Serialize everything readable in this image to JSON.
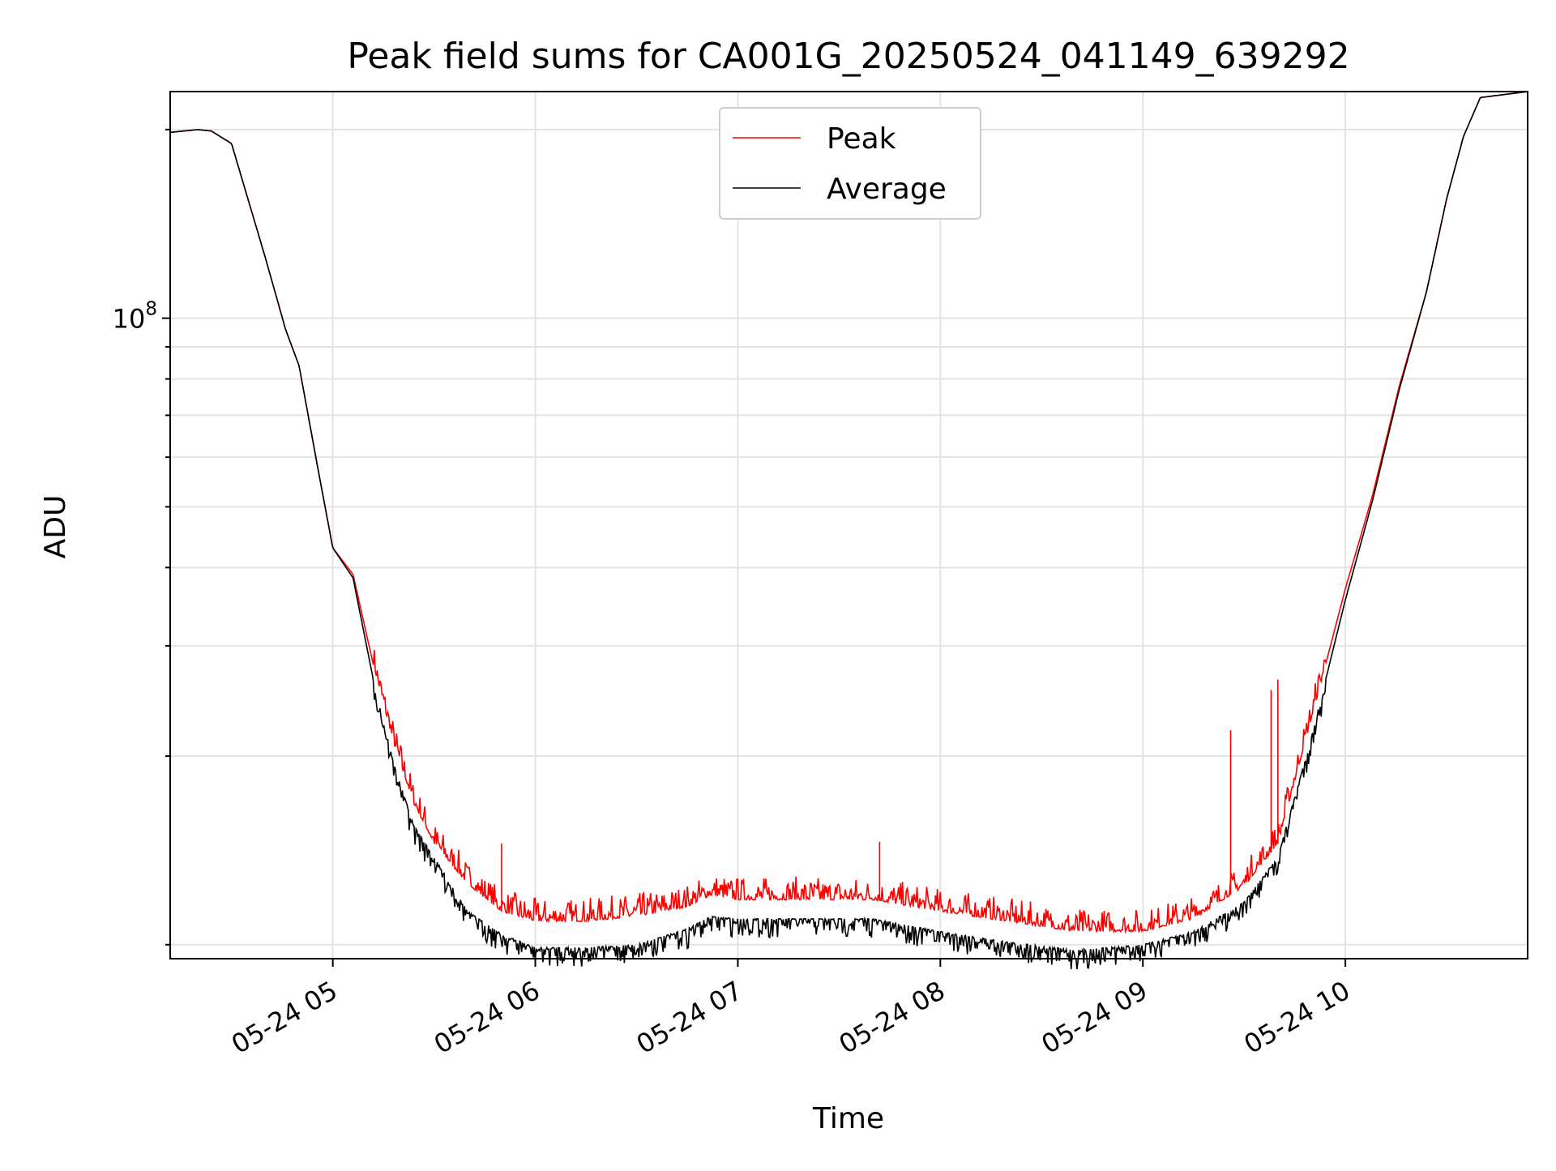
{
  "chart_data": {
    "type": "line",
    "title": "Peak field sums for CA001G_20250524_041149_639292",
    "xlabel": "Time",
    "ylabel": "ADU",
    "y_scale": "log",
    "ylim": [
      9500000,
      230000000
    ],
    "xlim": [
      "2025-05-24 04:11:49",
      "2025-05-24 10:54:00"
    ],
    "x_tick_labels": [
      "05-24 05",
      "05-24 06",
      "05-24 07",
      "05-24 08",
      "05-24 09",
      "05-24 10"
    ],
    "x_ticks": [
      "2025-05-24 05:00",
      "2025-05-24 06:00",
      "2025-05-24 07:00",
      "2025-05-24 08:00",
      "2025-05-24 09:00",
      "2025-05-24 10:00"
    ],
    "y_tick_label": "10^8",
    "y_tick_value": 100000000,
    "y_minor_ticks": [
      10000000,
      20000000,
      30000000,
      40000000,
      50000000,
      60000000,
      70000000,
      80000000,
      90000000,
      200000000
    ],
    "grid": true,
    "legend_position": "upper center",
    "series": [
      {
        "name": "Peak",
        "color": "#ff0000",
        "x": [
          "2025-05-24 04:12",
          "2025-05-24 04:20",
          "2025-05-24 04:24",
          "2025-05-24 04:30",
          "2025-05-24 04:40",
          "2025-05-24 04:46",
          "2025-05-24 04:50",
          "2025-05-24 04:56",
          "2025-05-24 05:00",
          "2025-05-24 05:06",
          "2025-05-24 05:12",
          "2025-05-24 05:18",
          "2025-05-24 05:24",
          "2025-05-24 05:30",
          "2025-05-24 05:40",
          "2025-05-24 05:50",
          "2025-05-24 06:00",
          "2025-05-24 06:15",
          "2025-05-24 06:30",
          "2025-05-24 06:45",
          "2025-05-24 06:52",
          "2025-05-24 07:00",
          "2025-05-24 07:20",
          "2025-05-24 07:40",
          "2025-05-24 08:00",
          "2025-05-24 08:20",
          "2025-05-24 08:40",
          "2025-05-24 09:00",
          "2025-05-24 09:15",
          "2025-05-24 09:30",
          "2025-05-24 09:40",
          "2025-05-24 09:50",
          "2025-05-24 10:00",
          "2025-05-24 10:08",
          "2025-05-24 10:16",
          "2025-05-24 10:24",
          "2025-05-24 10:30",
          "2025-05-24 10:35",
          "2025-05-24 10:40",
          "2025-05-24 10:54"
        ],
        "y": [
          198000000,
          200000000,
          199000000,
          190000000,
          125000000,
          96000000,
          84000000,
          56000000,
          43000000,
          39000000,
          28000000,
          21000000,
          16800000,
          14500000,
          12500000,
          11300000,
          10900000,
          10900000,
          11100000,
          11500000,
          12000000,
          11800000,
          11800000,
          11800000,
          11300000,
          10900000,
          10500000,
          10500000,
          11000000,
          12400000,
          14500000,
          23000000,
          37000000,
          52000000,
          78000000,
          110000000,
          155000000,
          195000000,
          225000000,
          230000000
        ],
        "spikes": [
          {
            "x": "2025-05-24 05:50",
            "y": 14500000
          },
          {
            "x": "2025-05-24 07:42",
            "y": 14600000
          },
          {
            "x": "2025-05-24 09:26",
            "y": 22000000
          },
          {
            "x": "2025-05-24 09:38",
            "y": 25500000
          },
          {
            "x": "2025-05-24 09:40",
            "y": 26500000
          }
        ]
      },
      {
        "name": "Average",
        "color": "#000000",
        "x": [
          "2025-05-24 04:12",
          "2025-05-24 04:20",
          "2025-05-24 04:24",
          "2025-05-24 04:30",
          "2025-05-24 04:40",
          "2025-05-24 04:46",
          "2025-05-24 04:50",
          "2025-05-24 04:56",
          "2025-05-24 05:00",
          "2025-05-24 05:06",
          "2025-05-24 05:12",
          "2025-05-24 05:18",
          "2025-05-24 05:24",
          "2025-05-24 05:30",
          "2025-05-24 05:40",
          "2025-05-24 05:50",
          "2025-05-24 06:00",
          "2025-05-24 06:15",
          "2025-05-24 06:30",
          "2025-05-24 06:45",
          "2025-05-24 06:52",
          "2025-05-24 07:00",
          "2025-05-24 07:20",
          "2025-05-24 07:40",
          "2025-05-24 08:00",
          "2025-05-24 08:20",
          "2025-05-24 08:40",
          "2025-05-24 09:00",
          "2025-05-24 09:15",
          "2025-05-24 09:30",
          "2025-05-24 09:40",
          "2025-05-24 09:50",
          "2025-05-24 10:00",
          "2025-05-24 10:08",
          "2025-05-24 10:16",
          "2025-05-24 10:24",
          "2025-05-24 10:30",
          "2025-05-24 10:35",
          "2025-05-24 10:40",
          "2025-05-24 10:54"
        ],
        "y": [
          198000000,
          200000000,
          199000000,
          190000000,
          125000000,
          96000000,
          84000000,
          56000000,
          43000000,
          38500000,
          26500000,
          19500000,
          15500000,
          13800000,
          11300000,
          10400000,
          9900000,
          9900000,
          10000000,
          10600000,
          11100000,
          11000000,
          11000000,
          11000000,
          10500000,
          10100000,
          9800000,
          10000000,
          10500000,
          11700000,
          13800000,
          21500000,
          35500000,
          51000000,
          77000000,
          110000000,
          155000000,
          195000000,
          225000000,
          230000000
        ]
      }
    ]
  }
}
